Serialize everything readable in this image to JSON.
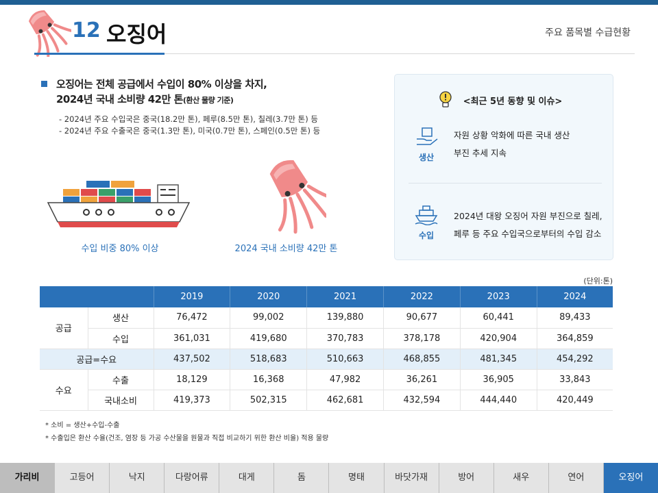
{
  "header": {
    "number": "12",
    "title": "오징어",
    "subtitle": "주요 품목별 수급현황"
  },
  "summary": {
    "main_line1": "오징어는 전체 공급에서 수입이 80% 이상을 차지,",
    "main_line2": "2024년 국내 소비량 42만 톤",
    "main_line2_small": "(환산 물량 기준)",
    "bullets": [
      "- 2024년 주요 수입국은 중국(18.2만 톤), 페루(8.5만 톤), 칠레(3.7만 톤) 등",
      "- 2024년 주요 수출국은 중국(1.3만 톤), 미국(0.7만 톤), 스페인(0.5만 톤) 등"
    ],
    "caption_ship": "수입 비중 80% 이상",
    "caption_squid": "2024 국내 소비량 42만 톤"
  },
  "panel": {
    "title": "<최근 5년 동향 및 이슈>",
    "items": [
      {
        "label": "생산",
        "icon": "hand-box-icon",
        "line1": "자원 상황 악화에 따른 국내 생산",
        "line2": "부진 추세 지속"
      },
      {
        "label": "수입",
        "icon": "ship-icon",
        "line1": "2024년 대왕 오징어 자원 부진으로 칠레,",
        "line2": "페루 등 주요 수입국으로부터의 수입 감소"
      }
    ]
  },
  "table": {
    "unit": "(단위:톤)",
    "years": [
      "2019",
      "2020",
      "2021",
      "2022",
      "2023",
      "2024"
    ],
    "supply_group": "공급",
    "demand_group": "수요",
    "rows": {
      "production": {
        "label": "생산",
        "values": [
          "76,472",
          "99,002",
          "139,880",
          "90,677",
          "60,441",
          "89,433"
        ]
      },
      "imports": {
        "label": "수입",
        "values": [
          "361,031",
          "419,680",
          "370,783",
          "378,178",
          "420,904",
          "364,859"
        ]
      },
      "balance": {
        "label": "공급=수요",
        "values": [
          "437,502",
          "518,683",
          "510,663",
          "468,855",
          "481,345",
          "454,292"
        ]
      },
      "exports": {
        "label": "수출",
        "values": [
          "18,129",
          "16,368",
          "47,982",
          "36,261",
          "36,905",
          "33,843"
        ]
      },
      "consumption": {
        "label": "국내소비",
        "values": [
          "419,373",
          "502,315",
          "462,681",
          "432,594",
          "444,440",
          "420,449"
        ]
      }
    }
  },
  "notes": [
    "* 소비 = 생산+수입-수출",
    "* 수출입은 환산 수율(건조, 염장 등 가공 수산물을 원물과 직접 비교하기 위한 환산 비율) 적용 물량"
  ],
  "nav": {
    "items": [
      "가리비",
      "고등어",
      "낙지",
      "다랑어류",
      "대게",
      "돔",
      "명태",
      "바닷가재",
      "방어",
      "새우",
      "연어",
      "오징어"
    ],
    "active": "오징어"
  },
  "colors": {
    "accent": "#2a71b8",
    "topbar": "#1f5f93",
    "squid": "#f08a8a"
  }
}
